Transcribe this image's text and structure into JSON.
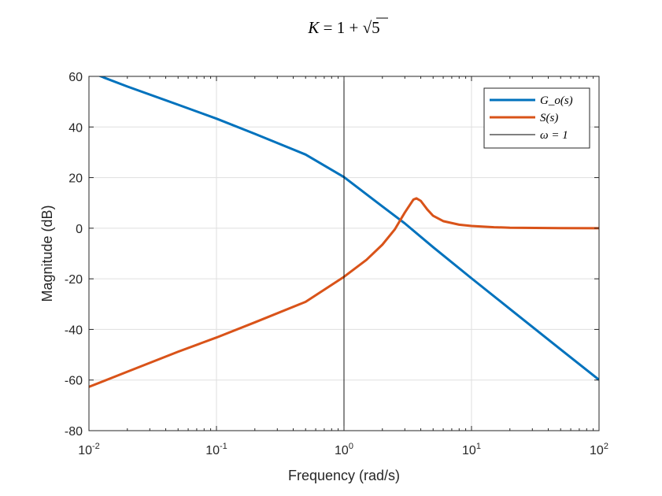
{
  "chart_data": {
    "type": "line",
    "title": "K = 1 + √5",
    "title_parts": {
      "lhs": "K",
      "eq": " = 1 + ",
      "radicand": "5"
    },
    "xlabel": "Frequency (rad/s)",
    "ylabel": "Magnitude (dB)",
    "xscale": "log",
    "xlim": [
      0.01,
      100
    ],
    "ylim": [
      -80,
      60
    ],
    "grid": true,
    "x_ticks": [
      {
        "base": "10",
        "exp": "-2",
        "value": 0.01
      },
      {
        "base": "10",
        "exp": "-1",
        "value": 0.1
      },
      {
        "base": "10",
        "exp": "0",
        "value": 1
      },
      {
        "base": "10",
        "exp": "1",
        "value": 10
      },
      {
        "base": "10",
        "exp": "2",
        "value": 100
      }
    ],
    "y_ticks": [
      {
        "label": "60",
        "value": 60
      },
      {
        "label": "40",
        "value": 40
      },
      {
        "label": "20",
        "value": 20
      },
      {
        "label": "0",
        "value": 0
      },
      {
        "label": "-20",
        "value": -20
      },
      {
        "label": "-40",
        "value": -40
      },
      {
        "label": "-60",
        "value": -60
      },
      {
        "label": "-80",
        "value": -80
      }
    ],
    "legend_position": "top-right",
    "series": [
      {
        "name": "G_o(s)",
        "color": "#0072BD",
        "width": "thick",
        "x": [
          0.01,
          0.013,
          0.02,
          0.05,
          0.1,
          0.2,
          0.5,
          1,
          2,
          3,
          5,
          10,
          20,
          50,
          100
        ],
        "y": [
          62,
          59.6,
          56,
          48.8,
          43.3,
          37.3,
          29.1,
          20.2,
          8.6,
          1.9,
          -7.5,
          -19.8,
          -31.9,
          -47.9,
          -59.9
        ]
      },
      {
        "name": "S(s)",
        "color": "#D95319",
        "width": "thick",
        "x": [
          0.01,
          0.02,
          0.05,
          0.1,
          0.2,
          0.5,
          1,
          1.5,
          2,
          2.5,
          3,
          3.5,
          3.7,
          4,
          4.5,
          5,
          6,
          8,
          10,
          15,
          20,
          50,
          100
        ],
        "y": [
          -62.7,
          -56.7,
          -48.8,
          -43.2,
          -37.2,
          -29.1,
          -19.2,
          -12.5,
          -6.5,
          -0.5,
          6.2,
          11.3,
          11.8,
          10.8,
          7.4,
          4.9,
          2.8,
          1.4,
          0.9,
          0.4,
          0.2,
          0.05,
          0
        ]
      },
      {
        "name": "ω = 1",
        "color": "#000000",
        "width": "thin",
        "vertical_at": 1
      }
    ]
  }
}
